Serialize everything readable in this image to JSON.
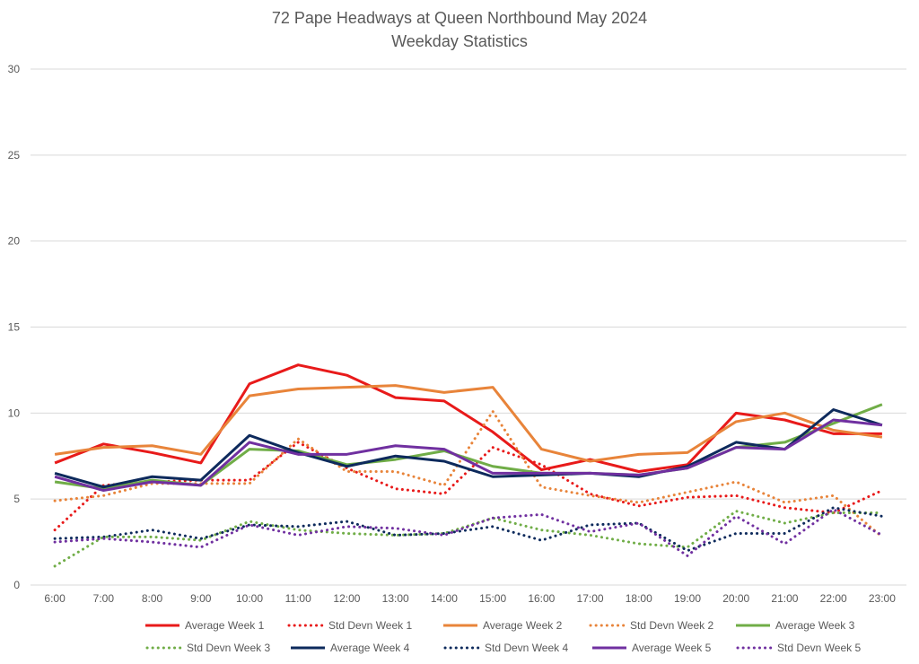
{
  "chart_data": {
    "type": "line",
    "title": "72 Pape Headways at Queen Northbound May 2024",
    "subtitle": "Weekday Statistics",
    "xlabel": "",
    "ylabel": "",
    "ylim": [
      0,
      30
    ],
    "yticks": [
      0,
      5,
      10,
      15,
      20,
      25,
      30
    ],
    "grid": true,
    "legend_placement": "bottom",
    "categories": [
      "6:00",
      "7:00",
      "8:00",
      "9:00",
      "10:00",
      "11:00",
      "12:00",
      "13:00",
      "14:00",
      "15:00",
      "16:00",
      "17:00",
      "18:00",
      "19:00",
      "20:00",
      "21:00",
      "22:00",
      "23:00"
    ],
    "series": [
      {
        "name": "Average Week 1",
        "color": "#e81a1a",
        "style": "solid",
        "values": [
          7.1,
          8.2,
          7.7,
          7.1,
          11.7,
          12.8,
          12.2,
          10.9,
          10.7,
          8.9,
          6.7,
          7.3,
          6.6,
          7.0,
          10.0,
          9.6,
          8.8,
          8.8
        ]
      },
      {
        "name": "Std Devn Week 1",
        "color": "#e81a1a",
        "style": "dotted",
        "values": [
          3.2,
          5.8,
          6.0,
          6.1,
          6.1,
          8.3,
          6.8,
          5.6,
          5.3,
          8.0,
          7.0,
          5.3,
          4.6,
          5.1,
          5.2,
          4.5,
          4.2,
          5.5
        ]
      },
      {
        "name": "Average Week 2",
        "color": "#e8843a",
        "style": "solid",
        "values": [
          7.6,
          8.0,
          8.1,
          7.6,
          11.0,
          11.4,
          11.5,
          11.6,
          11.2,
          11.5,
          7.9,
          7.2,
          7.6,
          7.7,
          9.5,
          10.0,
          9.0,
          8.6
        ]
      },
      {
        "name": "Std Devn Week 2",
        "color": "#e8843a",
        "style": "dotted",
        "values": [
          4.9,
          5.2,
          5.9,
          5.9,
          5.9,
          8.5,
          6.6,
          6.6,
          5.8,
          10.1,
          5.7,
          5.2,
          4.8,
          5.4,
          6.0,
          4.8,
          5.2,
          2.8
        ]
      },
      {
        "name": "Average Week 3",
        "color": "#70ad47",
        "style": "solid",
        "values": [
          6.0,
          5.6,
          6.1,
          5.8,
          7.9,
          7.8,
          7.0,
          7.3,
          7.8,
          6.9,
          6.5,
          6.5,
          6.4,
          6.8,
          8.0,
          8.3,
          9.4,
          10.5
        ]
      },
      {
        "name": "Std Devn Week 3",
        "color": "#70ad47",
        "style": "dotted",
        "values": [
          1.1,
          2.8,
          2.8,
          2.6,
          3.7,
          3.2,
          3.0,
          2.9,
          3.0,
          3.9,
          3.2,
          2.9,
          2.4,
          2.2,
          4.3,
          3.6,
          4.2,
          4.2
        ]
      },
      {
        "name": "Average Week 4",
        "color": "#0d2a5c",
        "style": "solid",
        "values": [
          6.5,
          5.7,
          6.3,
          6.1,
          8.7,
          7.7,
          6.9,
          7.5,
          7.2,
          6.3,
          6.4,
          6.5,
          6.3,
          6.9,
          8.3,
          7.9,
          10.2,
          9.3
        ]
      },
      {
        "name": "Std Devn Week 4",
        "color": "#0d2a5c",
        "style": "dotted",
        "values": [
          2.7,
          2.8,
          3.2,
          2.7,
          3.5,
          3.4,
          3.7,
          2.9,
          3.0,
          3.4,
          2.6,
          3.5,
          3.6,
          2.0,
          3.0,
          3.0,
          4.5,
          4.0
        ]
      },
      {
        "name": "Average Week 5",
        "color": "#7030a0",
        "style": "solid",
        "values": [
          6.3,
          5.5,
          6.0,
          5.8,
          8.3,
          7.6,
          7.6,
          8.1,
          7.9,
          6.5,
          6.5,
          6.5,
          6.4,
          6.8,
          8.0,
          7.9,
          9.6,
          9.3
        ]
      },
      {
        "name": "Std Devn Week 5",
        "color": "#7030a0",
        "style": "dotted",
        "values": [
          2.5,
          2.7,
          2.5,
          2.2,
          3.5,
          2.9,
          3.4,
          3.3,
          2.9,
          3.9,
          4.1,
          3.1,
          3.6,
          1.7,
          4.0,
          2.4,
          4.4,
          2.9
        ]
      }
    ]
  }
}
